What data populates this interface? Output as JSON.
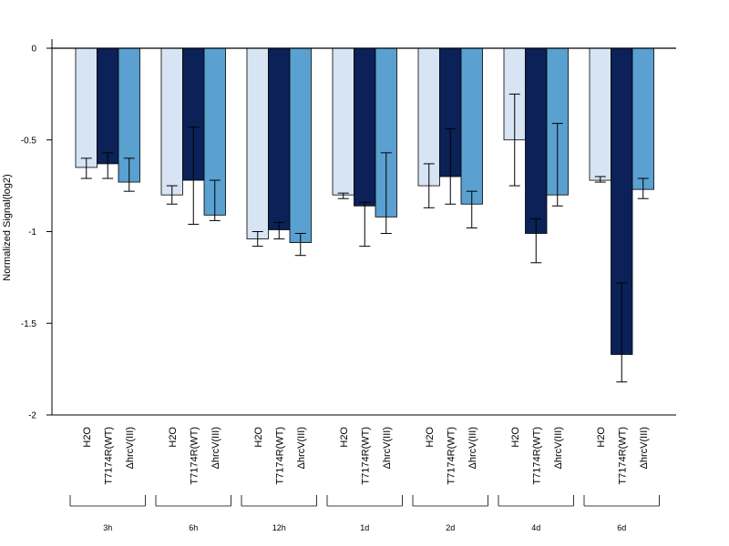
{
  "chart_data": {
    "type": "bar",
    "ylabel": "Normalized Signal(log2)",
    "xlabel": "",
    "title": "",
    "ylim": [
      -2,
      0.05
    ],
    "yticks": [
      0,
      -0.5,
      -1,
      -1.5,
      -2
    ],
    "ytick_labels": [
      "0",
      "-0.5",
      "-1",
      "-1.5",
      "-2"
    ],
    "bar_labels": [
      "H2O",
      "T7174R(WT)",
      "ΔhrcV(III)"
    ],
    "groups": [
      "3h",
      "6h",
      "12h",
      "1d",
      "2d",
      "4d",
      "6d"
    ],
    "series": [
      {
        "name": "H2O",
        "color": "#d6e4f4",
        "values": [
          -0.65,
          -0.8,
          -1.04,
          -0.8,
          -0.75,
          -0.5,
          -0.72
        ],
        "err_low": [
          -0.71,
          -0.85,
          -1.08,
          -0.82,
          -0.87,
          -0.75,
          -0.73
        ],
        "err_high": [
          -0.6,
          -0.75,
          -1.0,
          -0.79,
          -0.63,
          -0.25,
          -0.7
        ]
      },
      {
        "name": "T7174R(WT)",
        "color": "#0b2157",
        "values": [
          -0.63,
          -0.72,
          -0.99,
          -0.86,
          -0.7,
          -1.01,
          -1.67
        ],
        "err_low": [
          -0.71,
          -0.96,
          -1.04,
          -1.08,
          -0.85,
          -1.17,
          -1.82
        ],
        "err_high": [
          -0.57,
          -0.43,
          -0.95,
          -0.84,
          -0.44,
          -0.93,
          -1.28
        ]
      },
      {
        "name": "ΔhrcV(III)",
        "color": "#5aa0d0",
        "values": [
          -0.73,
          -0.91,
          -1.06,
          -0.92,
          -0.85,
          -0.8,
          -0.77
        ],
        "err_low": [
          -0.78,
          -0.94,
          -1.13,
          -1.01,
          -0.98,
          -0.86,
          -0.82
        ],
        "err_high": [
          -0.6,
          -0.72,
          -1.01,
          -0.57,
          -0.78,
          -0.41,
          -0.71
        ]
      }
    ],
    "grid": false,
    "legend": "none"
  }
}
